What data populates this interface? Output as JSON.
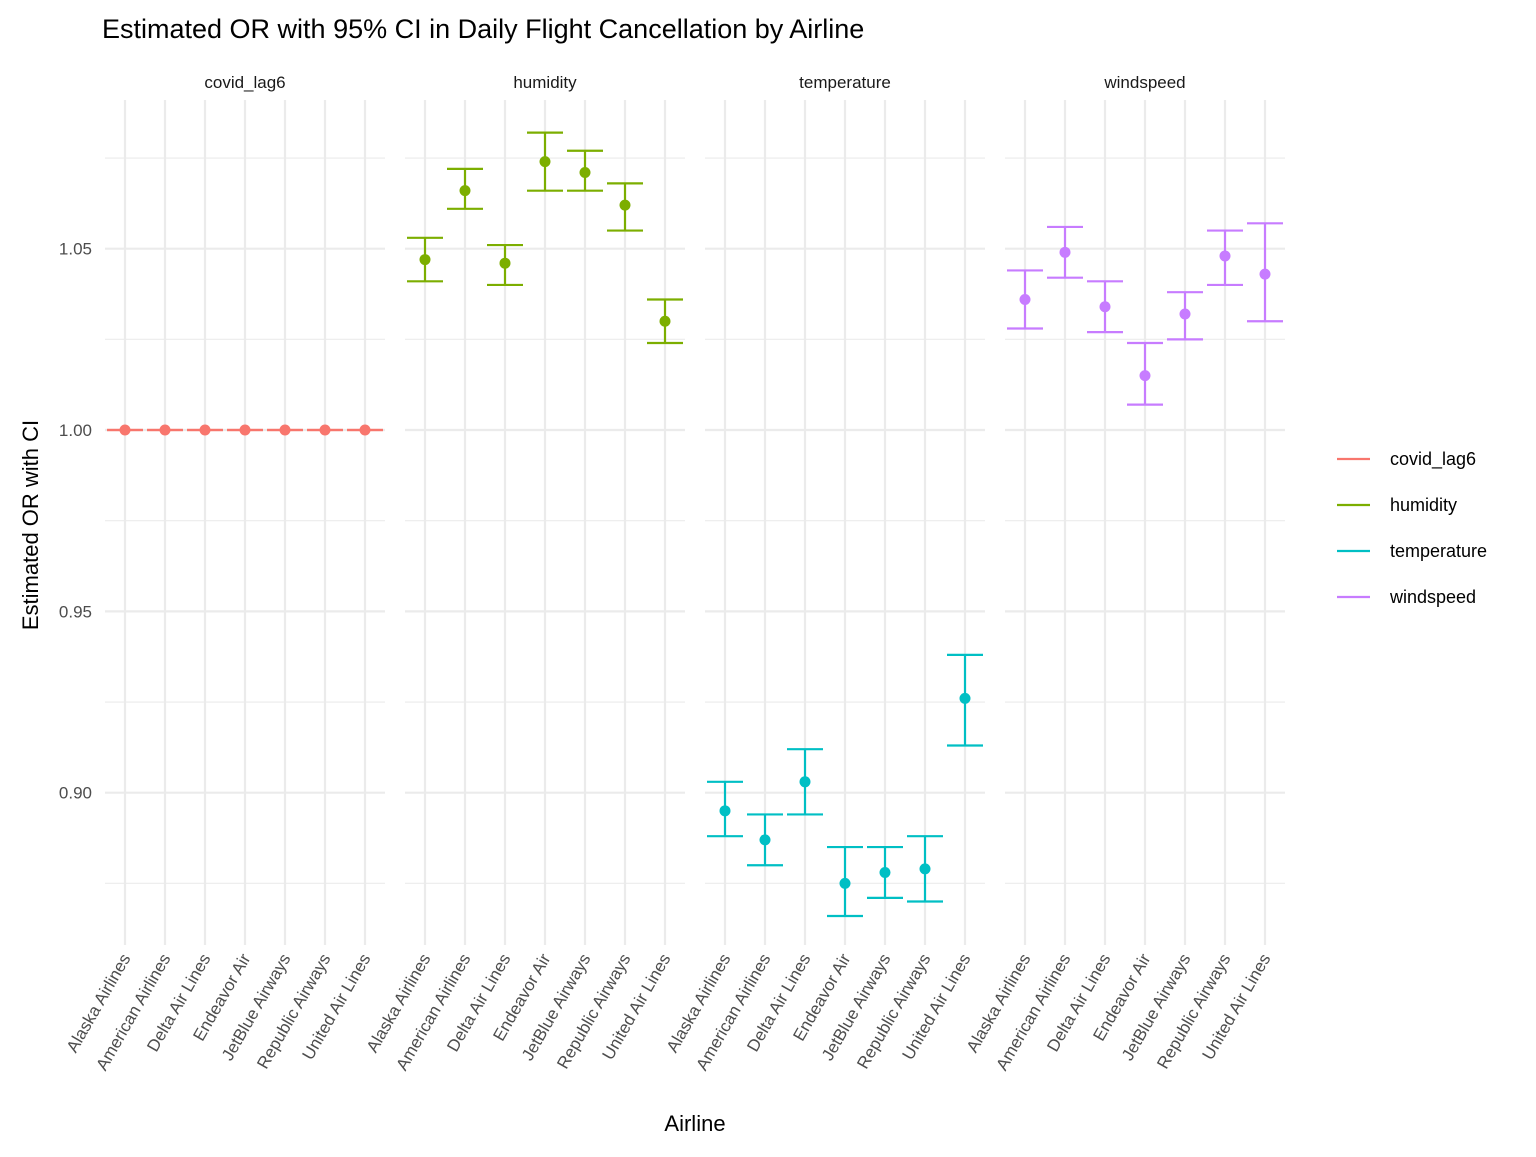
{
  "chart_data": {
    "type": "errorbar",
    "title": "Estimated OR with 95% CI in Daily Flight Cancellation by Airline",
    "xlabel": "Airline",
    "ylabel": "Estimated OR with CI",
    "ylim": [
      0.858,
      1.091
    ],
    "yticks": [
      0.9,
      0.95,
      1.0,
      1.05
    ],
    "ytick_labels": [
      "0.90",
      "0.95",
      "1.00",
      "1.05"
    ],
    "grid": true,
    "legend_position": "right",
    "categories": [
      "Alaska Airlines",
      "American Airlines",
      "Delta Air Lines",
      "Endeavor Air",
      "JetBlue Airways",
      "Republic Airways",
      "United Air Lines"
    ],
    "facets": [
      {
        "name": "covid_lag6",
        "color": "#F8766D",
        "estimate": [
          1.0,
          1.0,
          1.0,
          1.0,
          1.0,
          1.0,
          1.0
        ],
        "lower": [
          1.0,
          1.0,
          1.0,
          1.0,
          1.0,
          1.0,
          1.0
        ],
        "upper": [
          1.0,
          1.0,
          1.0,
          1.0,
          1.0,
          1.0,
          1.0
        ]
      },
      {
        "name": "humidity",
        "color": "#7CAE00",
        "estimate": [
          1.047,
          1.066,
          1.046,
          1.074,
          1.071,
          1.062,
          1.03
        ],
        "lower": [
          1.041,
          1.061,
          1.04,
          1.066,
          1.066,
          1.055,
          1.024
        ],
        "upper": [
          1.053,
          1.072,
          1.051,
          1.082,
          1.077,
          1.068,
          1.036
        ]
      },
      {
        "name": "temperature",
        "color": "#00BFC4",
        "estimate": [
          0.895,
          0.887,
          0.903,
          0.875,
          0.878,
          0.879,
          0.926
        ],
        "lower": [
          0.888,
          0.88,
          0.894,
          0.866,
          0.871,
          0.87,
          0.913
        ],
        "upper": [
          0.903,
          0.894,
          0.912,
          0.885,
          0.885,
          0.888,
          0.938
        ]
      },
      {
        "name": "windspeed",
        "color": "#C77CFF",
        "estimate": [
          1.036,
          1.049,
          1.034,
          1.015,
          1.032,
          1.048,
          1.043
        ],
        "lower": [
          1.028,
          1.042,
          1.027,
          1.007,
          1.025,
          1.04,
          1.03
        ],
        "upper": [
          1.044,
          1.056,
          1.041,
          1.024,
          1.038,
          1.055,
          1.057
        ]
      }
    ],
    "legend": [
      "covid_lag6",
      "humidity",
      "temperature",
      "windspeed"
    ]
  }
}
